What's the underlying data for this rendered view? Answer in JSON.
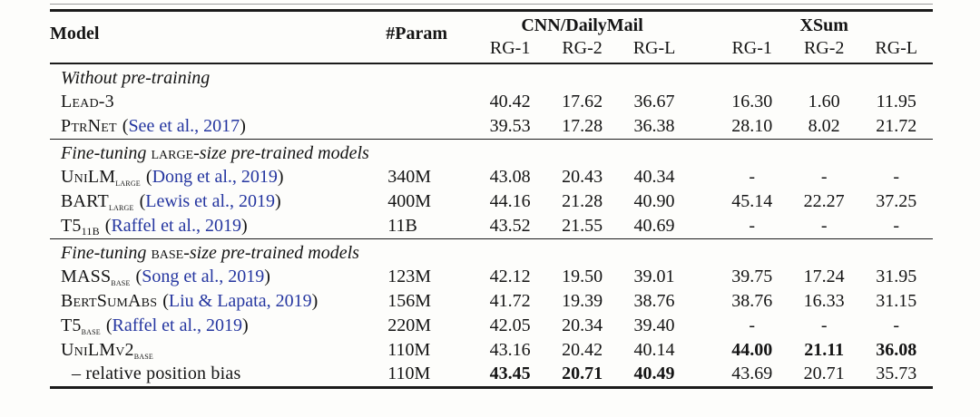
{
  "colors": {
    "link_blue": "#2536a0",
    "text": "#141414",
    "rule": "#1b1b1b"
  },
  "table": {
    "headers": {
      "model": "Model",
      "param": "#Param",
      "group_cnn": "CNN/DailyMail",
      "group_xsum": "XSum",
      "metrics": [
        "RG-1",
        "RG-2",
        "RG-L"
      ]
    },
    "punct": {
      "open": "(",
      "close": ")"
    },
    "sections": [
      {
        "pre": "Without pre-training",
        "sc": "",
        "post": ""
      },
      {
        "pre": "Fine-tuning ",
        "sc": "large",
        "post": "-size pre-trained models"
      },
      {
        "pre": "Fine-tuning ",
        "sc": "base",
        "post": "-size pre-trained models"
      }
    ],
    "rows": [
      {
        "name": "Lead-3",
        "scores": [
          "40.42",
          "17.62",
          "36.67",
          "16.30",
          "1.60",
          "11.95"
        ]
      },
      {
        "name": "PtrNet",
        "cite": "See et al., 2017",
        "scores": [
          "39.53",
          "17.28",
          "36.38",
          "28.10",
          "8.02",
          "21.72"
        ]
      },
      {
        "name": "UniLM",
        "sub": "large",
        "cite": "Dong et al., 2019",
        "param": "340M",
        "scores": [
          "43.08",
          "20.43",
          "40.34",
          "-",
          "-",
          "-"
        ]
      },
      {
        "name": "BART",
        "sub": "large",
        "cite": "Lewis et al., 2019",
        "param": "400M",
        "scores": [
          "44.16",
          "21.28",
          "40.90",
          "45.14",
          "22.27",
          "37.25"
        ]
      },
      {
        "name": "T5",
        "sub": "11B",
        "cite": "Raffel et al., 2019",
        "param": "11B",
        "scores": [
          "43.52",
          "21.55",
          "40.69",
          "-",
          "-",
          "-"
        ]
      },
      {
        "name": "MASS",
        "sub": "base",
        "cite": "Song et al., 2019",
        "param": "123M",
        "scores": [
          "42.12",
          "19.50",
          "39.01",
          "39.75",
          "17.24",
          "31.95"
        ]
      },
      {
        "name": "BertSumAbs",
        "cite": "Liu & Lapata, 2019",
        "param": "156M",
        "scores": [
          "41.72",
          "19.39",
          "38.76",
          "38.76",
          "16.33",
          "31.15"
        ]
      },
      {
        "name": "T5",
        "sub": "base",
        "cite": "Raffel et al., 2019",
        "param": "220M",
        "scores": [
          "42.05",
          "20.34",
          "39.40",
          "-",
          "-",
          "-"
        ]
      },
      {
        "name": "UniLMv2",
        "sub": "base",
        "param": "110M",
        "scores": [
          "43.16",
          "20.42",
          "40.14",
          "44.00",
          "21.11",
          "36.08"
        ]
      },
      {
        "name": "– relative position bias",
        "param": "110M",
        "scores": [
          "43.45",
          "20.71",
          "40.49",
          "43.69",
          "20.71",
          "35.73"
        ]
      }
    ]
  }
}
